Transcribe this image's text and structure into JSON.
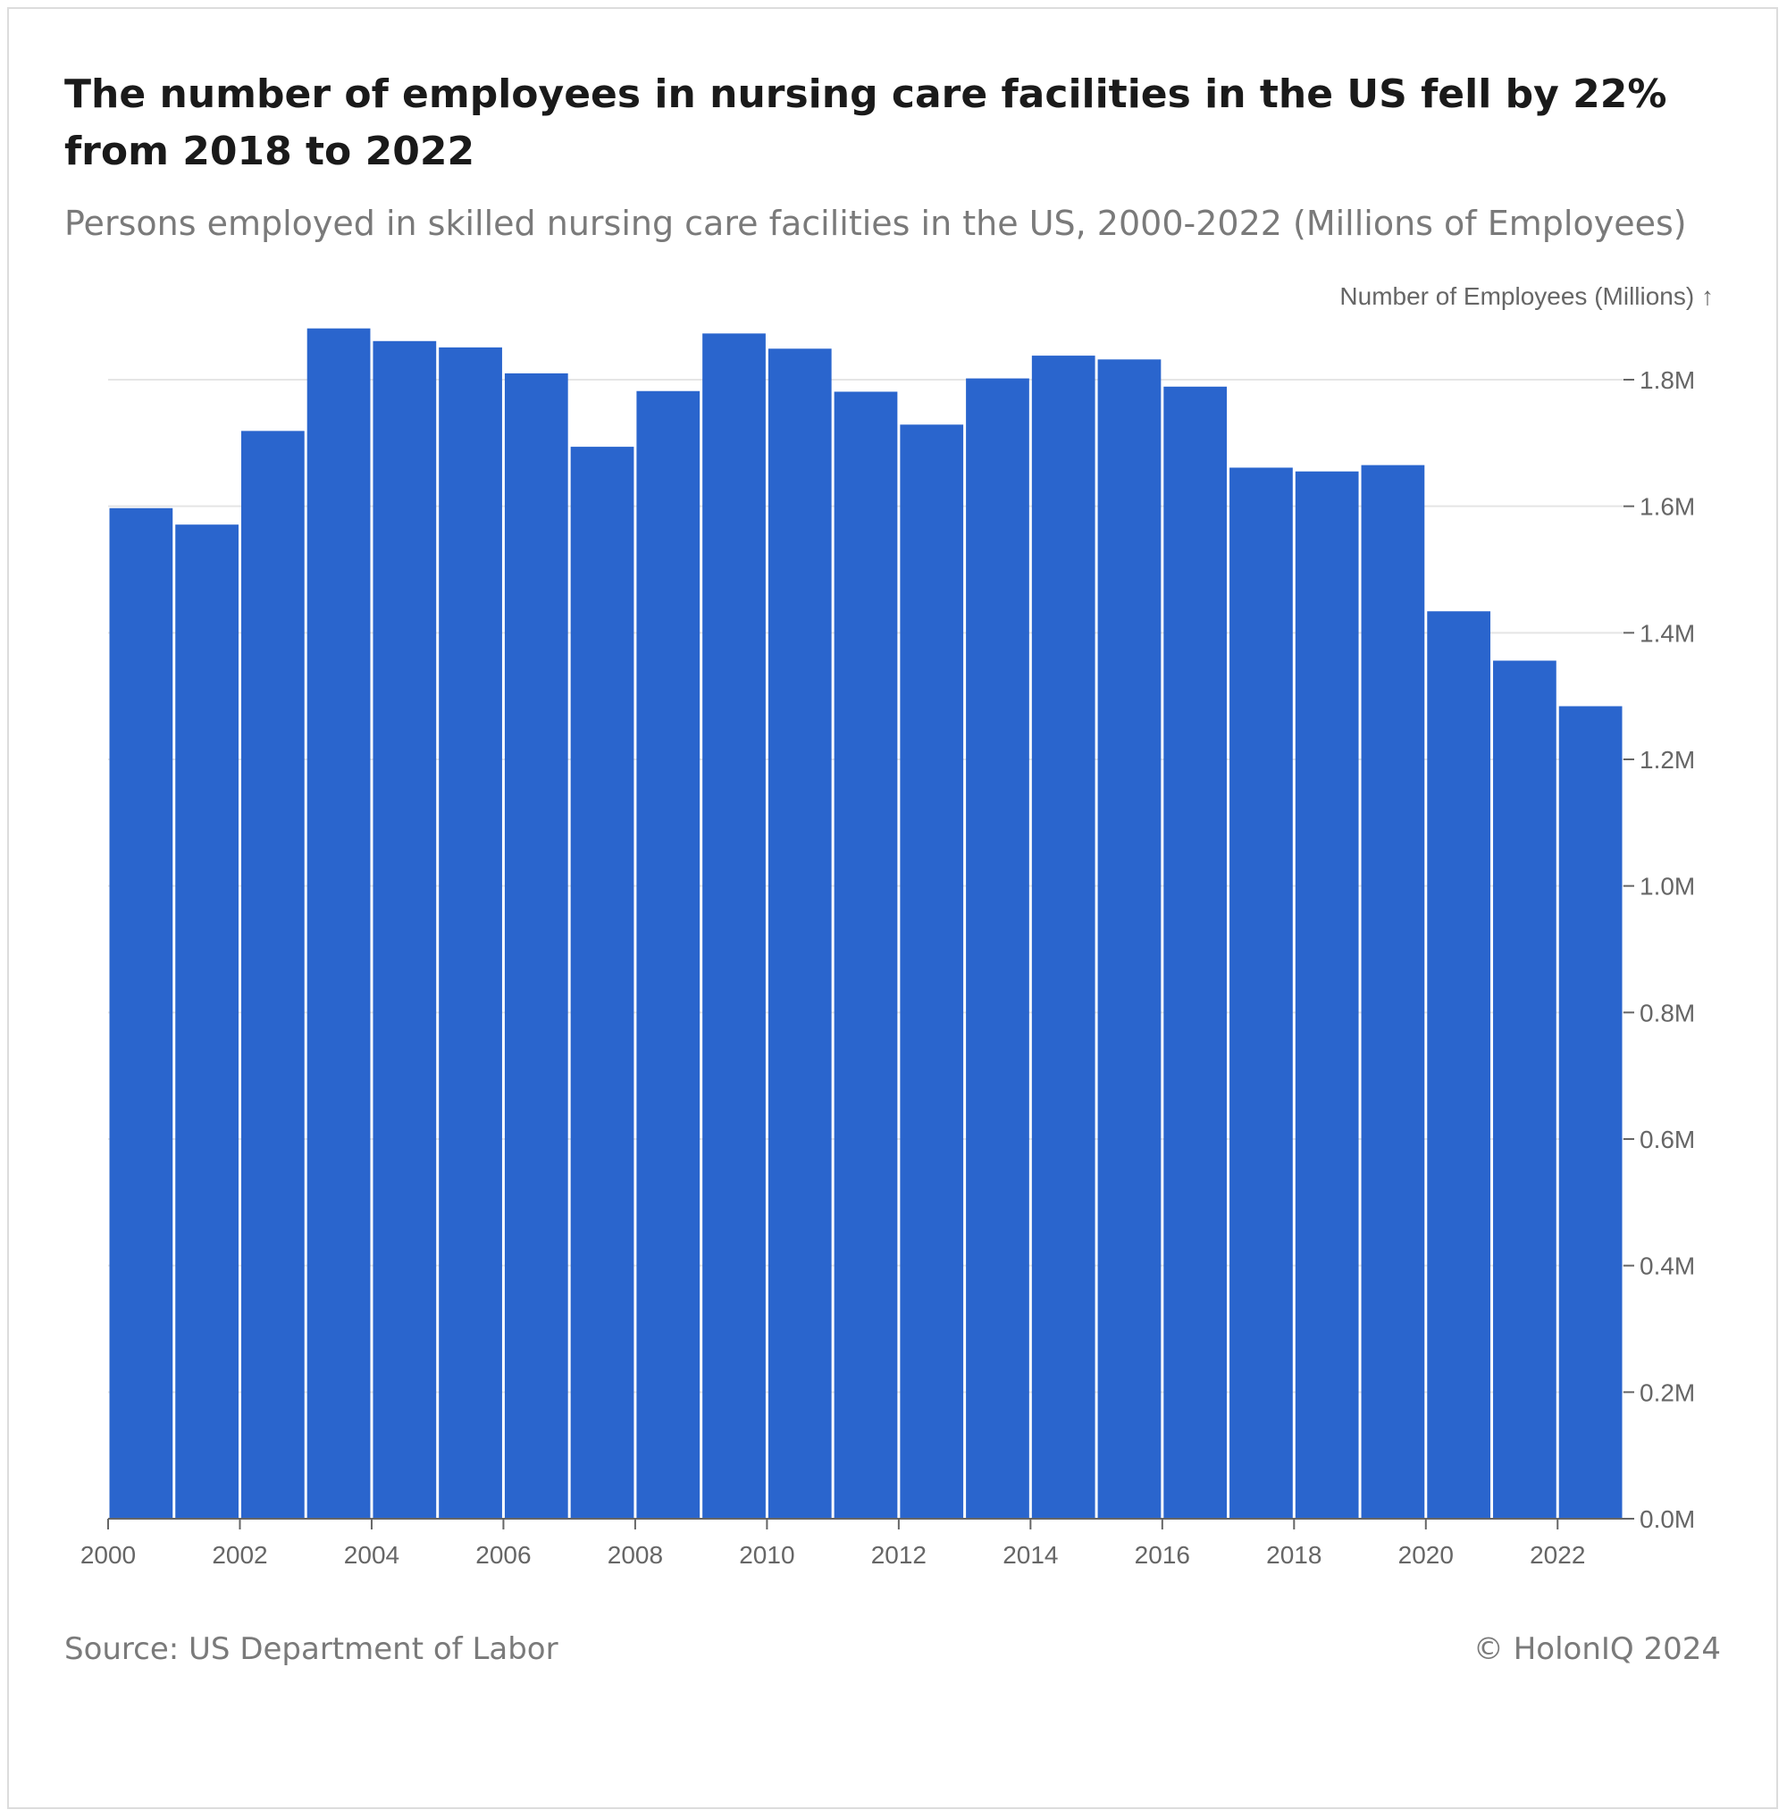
{
  "header": {
    "title": "The number of employees in nursing care facilities in the US fell by 22% from 2018 to 2022",
    "subtitle": "Persons employed in skilled nursing care facilities in the US, 2000-2022 (Millions of Employees)"
  },
  "footer": {
    "source": "Source: US Department of Labor",
    "copyright": "© HolonIQ 2024"
  },
  "chart_data": {
    "type": "bar",
    "ylabel": "Number of Employees (Millions) ↑",
    "x": [
      2000,
      2001,
      2002,
      2003,
      2004,
      2005,
      2006,
      2007,
      2008,
      2009,
      2010,
      2011,
      2012,
      2013,
      2014,
      2015,
      2016,
      2017,
      2018,
      2019,
      2020,
      2021,
      2022
    ],
    "values": [
      1.597,
      1.571,
      1.719,
      1.881,
      1.861,
      1.851,
      1.81,
      1.694,
      1.782,
      1.873,
      1.849,
      1.781,
      1.729,
      1.802,
      1.838,
      1.832,
      1.789,
      1.661,
      1.655,
      1.665,
      1.434,
      1.356,
      1.284
    ],
    "xticks": [
      "2000",
      "2002",
      "2004",
      "2006",
      "2008",
      "2010",
      "2012",
      "2014",
      "2016",
      "2018",
      "2020",
      "2022"
    ],
    "yticks": [
      "0.0M",
      "0.2M",
      "0.4M",
      "0.6M",
      "0.8M",
      "1.0M",
      "1.2M",
      "1.4M",
      "1.6M",
      "1.8M"
    ],
    "ylim": [
      0,
      1.8
    ],
    "xlim": [
      2000,
      2023
    ],
    "grid": true,
    "bar_color": "#2a65cd",
    "grid_color": "#e5e5e5",
    "axis_color": "#666666"
  }
}
